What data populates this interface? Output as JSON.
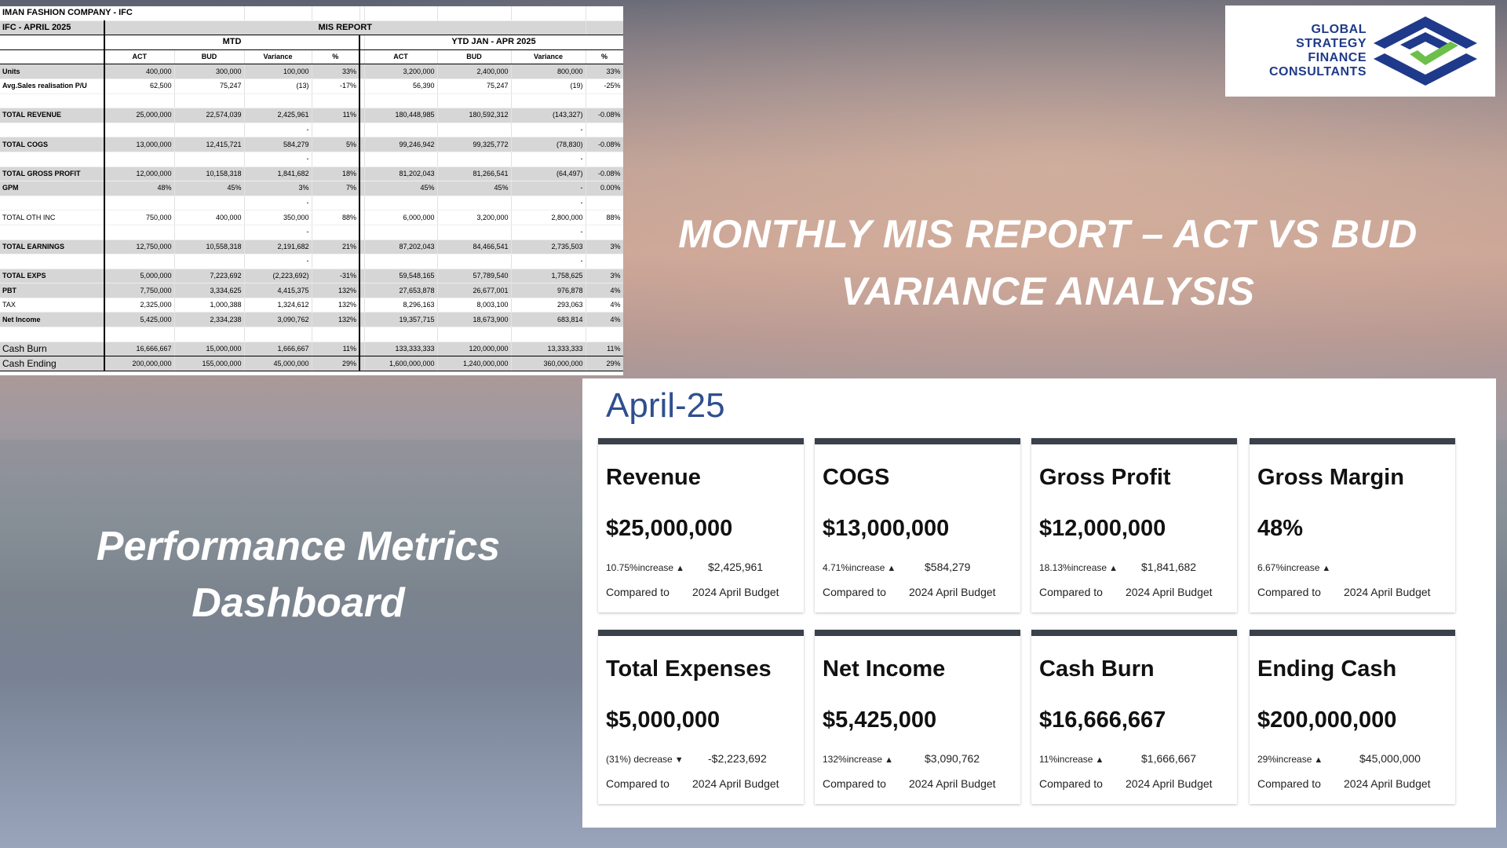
{
  "spreadsheet": {
    "company": "IMAN FASHION COMPANY - IFC",
    "period_label": "IFC - APRIL  2025",
    "report_title": "MIS REPORT",
    "mtd_label": "MTD",
    "ytd_label": "YTD JAN -  APR 2025",
    "columns": [
      "ACT",
      "BUD",
      "Variance",
      "%",
      "ACT",
      "BUD",
      "Variance",
      "%"
    ],
    "rows": [
      {
        "label": "Units",
        "vals": [
          "400,000",
          "300,000",
          "100,000",
          "33%",
          "3,200,000",
          "2,400,000",
          "800,000",
          "33%"
        ],
        "style": "grey"
      },
      {
        "label": "Avg.Sales realisation P/U",
        "vals": [
          "62,500",
          "75,247",
          "(13)",
          "-17%",
          "56,390",
          "75,247",
          "(19)",
          "-25%"
        ],
        "style": "plain"
      },
      {
        "label": "",
        "vals": [
          "",
          "",
          "",
          "",
          "",
          "",
          "",
          ""
        ],
        "style": "plain"
      },
      {
        "label": "TOTAL REVENUE",
        "vals": [
          "25,000,000",
          "22,574,039",
          "2,425,961",
          "11%",
          "180,448,985",
          "180,592,312",
          "(143,327)",
          "-0.08%"
        ],
        "style": "grey"
      },
      {
        "label": "",
        "vals": [
          "",
          "",
          "-",
          "",
          "",
          "",
          "-",
          ""
        ],
        "style": "plain"
      },
      {
        "label": "TOTAL COGS",
        "vals": [
          "13,000,000",
          "12,415,721",
          "584,279",
          "5%",
          "99,246,942",
          "99,325,772",
          "(78,830)",
          "-0.08%"
        ],
        "style": "grey"
      },
      {
        "label": "",
        "vals": [
          "",
          "",
          "-",
          "",
          "",
          "",
          "-",
          ""
        ],
        "style": "plain"
      },
      {
        "label": "TOTAL GROSS PROFIT",
        "vals": [
          "12,000,000",
          "10,158,318",
          "1,841,682",
          "18%",
          "81,202,043",
          "81,266,541",
          "(64,497)",
          "-0.08%"
        ],
        "style": "grey"
      },
      {
        "label": "GPM",
        "vals": [
          "48%",
          "45%",
          "3%",
          "7%",
          "45%",
          "45%",
          "-",
          "0.00%"
        ],
        "style": "grey"
      },
      {
        "label": "",
        "vals": [
          "",
          "",
          "-",
          "",
          "",
          "",
          "-",
          ""
        ],
        "style": "plain"
      },
      {
        "label": "TOTAL OTH INC",
        "vals": [
          "750,000",
          "400,000",
          "350,000",
          "88%",
          "6,000,000",
          "3,200,000",
          "2,800,000",
          "88%"
        ],
        "style": "plainlabel"
      },
      {
        "label": "",
        "vals": [
          "",
          "",
          "-",
          "",
          "",
          "",
          "-",
          ""
        ],
        "style": "plain"
      },
      {
        "label": "TOTAL EARNINGS",
        "vals": [
          "12,750,000",
          "10,558,318",
          "2,191,682",
          "21%",
          "87,202,043",
          "84,466,541",
          "2,735,503",
          "3%"
        ],
        "style": "grey"
      },
      {
        "label": "",
        "vals": [
          "",
          "",
          "-",
          "",
          "",
          "",
          "-",
          ""
        ],
        "style": "plain"
      },
      {
        "label": "TOTAL EXPS",
        "vals": [
          "5,000,000",
          "7,223,692",
          "(2,223,692)",
          "-31%",
          "59,548,165",
          "57,789,540",
          "1,758,625",
          "3%"
        ],
        "style": "grey"
      },
      {
        "label": "PBT",
        "vals": [
          "7,750,000",
          "3,334,625",
          "4,415,375",
          "132%",
          "27,653,878",
          "26,677,001",
          "976,878",
          "4%"
        ],
        "style": "grey"
      },
      {
        "label": "TAX",
        "vals": [
          "2,325,000",
          "1,000,388",
          "1,324,612",
          "132%",
          "8,296,163",
          "8,003,100",
          "293,063",
          "4%"
        ],
        "style": "plainlabel"
      },
      {
        "label": "Net Income",
        "vals": [
          "5,425,000",
          "2,334,238",
          "3,090,762",
          "132%",
          "19,357,715",
          "18,673,900",
          "683,814",
          "4%"
        ],
        "style": "grey"
      },
      {
        "label": "",
        "vals": [
          "",
          "",
          "",
          "",
          "",
          "",
          "",
          ""
        ],
        "style": "plain"
      },
      {
        "label": "Cash Burn",
        "vals": [
          "16,666,667",
          "15,000,000",
          "1,666,667",
          "11%",
          "133,333,333",
          "120,000,000",
          "13,333,333",
          "11%"
        ],
        "style": "cash"
      },
      {
        "label": "Cash Ending",
        "vals": [
          "200,000,000",
          "155,000,000",
          "45,000,000",
          "29%",
          "1,600,000,000",
          "1,240,000,000",
          "360,000,000",
          "29%"
        ],
        "style": "cash"
      }
    ]
  },
  "logo": {
    "lines": [
      "GLOBAL",
      "STRATEGY",
      "FINANCE",
      "CONSULTANTS"
    ],
    "navy": "#1f3a8a",
    "green": "#6cc04a"
  },
  "headline": {
    "line1": "MONTHLY MIS REPORT – ACT VS BUD",
    "line2": "VARIANCE ANALYSIS"
  },
  "side_title": {
    "line1": "Performance Metrics",
    "line2": "Dashboard"
  },
  "dashboard": {
    "title": "April-25",
    "compared_to": "Compared to",
    "budget_label": "2024 April Budget",
    "cards": [
      {
        "name": "Revenue",
        "value": "$25,000,000",
        "change": "10.75%increase",
        "arrow": "▲",
        "amount": "$2,425,961"
      },
      {
        "name": "COGS",
        "value": "$13,000,000",
        "change": "4.71%increase",
        "arrow": "▲",
        "amount": "$584,279"
      },
      {
        "name": "Gross Profit",
        "value": "$12,000,000",
        "change": "18.13%increase",
        "arrow": "▲",
        "amount": "$1,841,682"
      },
      {
        "name": "Gross Margin",
        "value": "48%",
        "change": "6.67%increase",
        "arrow": "▲",
        "amount": ""
      },
      {
        "name": "Total Expenses",
        "value": "$5,000,000",
        "change": "(31%) decrease",
        "arrow": "▼",
        "amount": "-$2,223,692"
      },
      {
        "name": "Net Income",
        "value": "$5,425,000",
        "change": "132%increase",
        "arrow": "▲",
        "amount": "$3,090,762"
      },
      {
        "name": "Cash Burn",
        "value": "$16,666,667",
        "change": "11%increase",
        "arrow": "▲",
        "amount": "$1,666,667"
      },
      {
        "name": "Ending Cash",
        "value": "$200,000,000",
        "change": "29%increase",
        "arrow": "▲",
        "amount": "$45,000,000"
      }
    ]
  }
}
